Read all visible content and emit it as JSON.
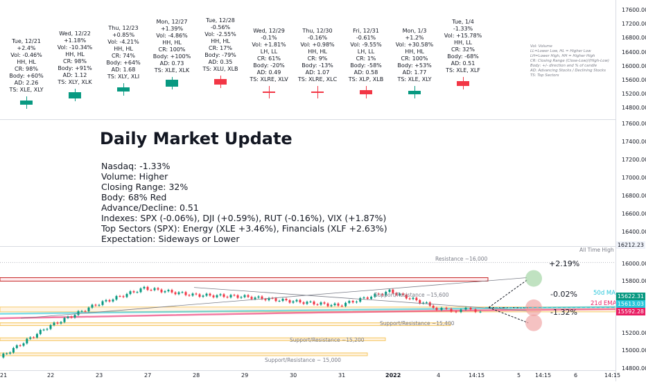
{
  "day_stats": [
    {
      "lines": [
        "Tue, 12/21",
        "+2.4%",
        "Vol: -0.46%",
        "HH, HL",
        "CR: 98%",
        "Body: +60%",
        "AD: 2.26",
        "TS: XLE, XLY"
      ],
      "candle": {
        "color": "#089981",
        "body": 60,
        "dir": "up"
      }
    },
    {
      "lines": [
        "Wed, 12/22",
        "+1.18%",
        "Vol: -10.34%",
        "HH, HL",
        "CR: 98%",
        "Body: +91%",
        "AD: 1.12",
        "TS: XLY, XLK"
      ],
      "candle": {
        "color": "#089981",
        "body": 91,
        "dir": "up"
      }
    },
    {
      "lines": [
        "Thu, 12/23",
        "+0.85%",
        "Vol: -4.21%",
        "HH, HL",
        "CR: 74%",
        "Body: +64%",
        "AD: 1.68",
        "TS: XLY, XLI"
      ],
      "candle": {
        "color": "#089981",
        "body": 64,
        "dir": "up"
      }
    },
    {
      "lines": [
        "Mon, 12/27",
        "+1.39%",
        "Vol: -4.86%",
        "HH, HL",
        "CR: 100%",
        "Body: +100%",
        "AD: 0.73",
        "TS: XLE, XLK"
      ],
      "candle": {
        "color": "#089981",
        "body": 100,
        "dir": "up"
      }
    },
    {
      "lines": [
        "Tue, 12/28",
        "-0.56%",
        "Vol: -2.55%",
        "HH, HL",
        "CR: 17%",
        "Body: -79%",
        "AD: 0.35",
        "TS: XLU, XLB"
      ],
      "candle": {
        "color": "#f23645",
        "body": 79,
        "dir": "down"
      }
    },
    {
      "lines": [
        "Wed, 12/29",
        "-0.1%",
        "Vol: +1.81%",
        "LH, LL",
        "CR: 61%",
        "Body: -20%",
        "AD: 0.49",
        "TS: XLRE, XLV"
      ],
      "candle": {
        "color": "#f23645",
        "body": 20,
        "dir": "down"
      }
    },
    {
      "lines": [
        "Thu, 12/30",
        "-0.16%",
        "Vol: +0.98%",
        "HH, HL",
        "CR: 9%",
        "Body: -13%",
        "AD: 1.07",
        "TS: XLRE, XLC"
      ],
      "candle": {
        "color": "#f23645",
        "body": 13,
        "dir": "down"
      }
    },
    {
      "lines": [
        "Fri, 12/31",
        "-0.61%",
        "Vol: -9.55%",
        "LH, LL",
        "CR: 1%",
        "Body: -58%",
        "AD: 0.58",
        "TS: XLP, XLB"
      ],
      "candle": {
        "color": "#f23645",
        "body": 58,
        "dir": "down"
      }
    },
    {
      "lines": [
        "Mon, 1/3",
        "+1.2%",
        "Vol: +30.58%",
        "HH, HL",
        "CR: 100%",
        "Body: +53%",
        "AD: 1.77",
        "TS: XLE, XLY"
      ],
      "candle": {
        "color": "#089981",
        "body": 53,
        "dir": "up"
      }
    },
    {
      "lines": [
        "Tue, 1/4",
        "-1.33%",
        "Vol: +15.78%",
        "HH, LL",
        "CR: 32%",
        "Body: -68%",
        "AD: 0.51",
        "TS: XLE, XLF"
      ],
      "candle": {
        "color": "#f23645",
        "body": 68,
        "dir": "down"
      }
    }
  ],
  "legend": [
    "Vol: Volume",
    "LL=Lower Low, HL = Higher Low",
    "LH=Lower High, HH = Higher High",
    "CR: Closing Range (Close-Low)/(High-Low)",
    "Body: +/- direction and % of candle",
    "AD: Advancing Stocks / Declining Stocks",
    "TS: Top Sectors"
  ],
  "title": "Daily Market Update",
  "summary": [
    "Nasdaq: -1.33%",
    "Volume: Higher",
    "Closing Range: 32%",
    "Body: 68% Red",
    "Advance/Decline: 0.51",
    "Indexes: SPX (-0.06%), DJI (+0.59%), RUT (-0.16%), VIX (+1.87%)",
    "Top Sectors (SPX): Energy (XLE +3.46%), Financials (XLF +2.63%)",
    "Expectation: Sideways or Lower"
  ],
  "axis_top_labels": [
    "17600.00",
    "17200.00",
    "16800.00",
    "16400.00",
    "16000.00",
    "15600.00",
    "15200.00",
    "14800.00"
  ],
  "axis_mid_labels": [
    "17600.00",
    "17400.00",
    "17200.00",
    "17000.00",
    "16800.00",
    "16600.00",
    "16400.00"
  ],
  "axis_main_labels": [
    "16000.00",
    "15800.00",
    "15200.00",
    "15000.00",
    "14800.00"
  ],
  "price_tags": {
    "ath": "16212.23",
    "ma50": "15622.31",
    "price": "15613.03",
    "ema21": "15592.28"
  },
  "x_labels": [
    "21",
    "22",
    "23",
    "27",
    "28",
    "29",
    "30",
    "31",
    "2022",
    "4",
    "14:15",
    "5",
    "14:15",
    "6",
    "14:15"
  ],
  "chart_text": {
    "ath": "All Time High",
    "resistance": "Resistance ~16,000",
    "support_15600": "Support/Resistance ~15,600",
    "support_15400": "Support/Resistance ~15,400",
    "support_15200": "Support/Resistance ~15,200",
    "support_15000": "Support/Resistance ~ 15,000",
    "ma50": "50d MA",
    "ema21": "21d EMA",
    "scenario_up": "+2.19%",
    "scenario_flat": "-0.02%",
    "scenario_down": "-1.32%"
  },
  "colors": {
    "up": "#089981",
    "down": "#f23645",
    "ma50": "#26c6da",
    "ema21": "#e91e63",
    "support": "#f5c55c",
    "resistance": "#c62828",
    "bull_circle": "#a5d6a7",
    "bear_circle": "#ef9a9a"
  },
  "chart_data": {
    "type": "line",
    "title": "Daily Market Update",
    "series": [
      {
        "name": "",
        "x": [
          "21",
          "22",
          "23",
          "27",
          "28",
          "29",
          "30",
          "31",
          "2022",
          "4"
        ],
        "values": [
          14950,
          15350,
          15650,
          15870,
          15780,
          15760,
          15700,
          15640,
          15830,
          15613
        ]
      }
    ],
    "levels": [
      16000,
      15600,
      15400,
      15200,
      15000
    ],
    "ylim": [
      14780,
      16420
    ]
  }
}
